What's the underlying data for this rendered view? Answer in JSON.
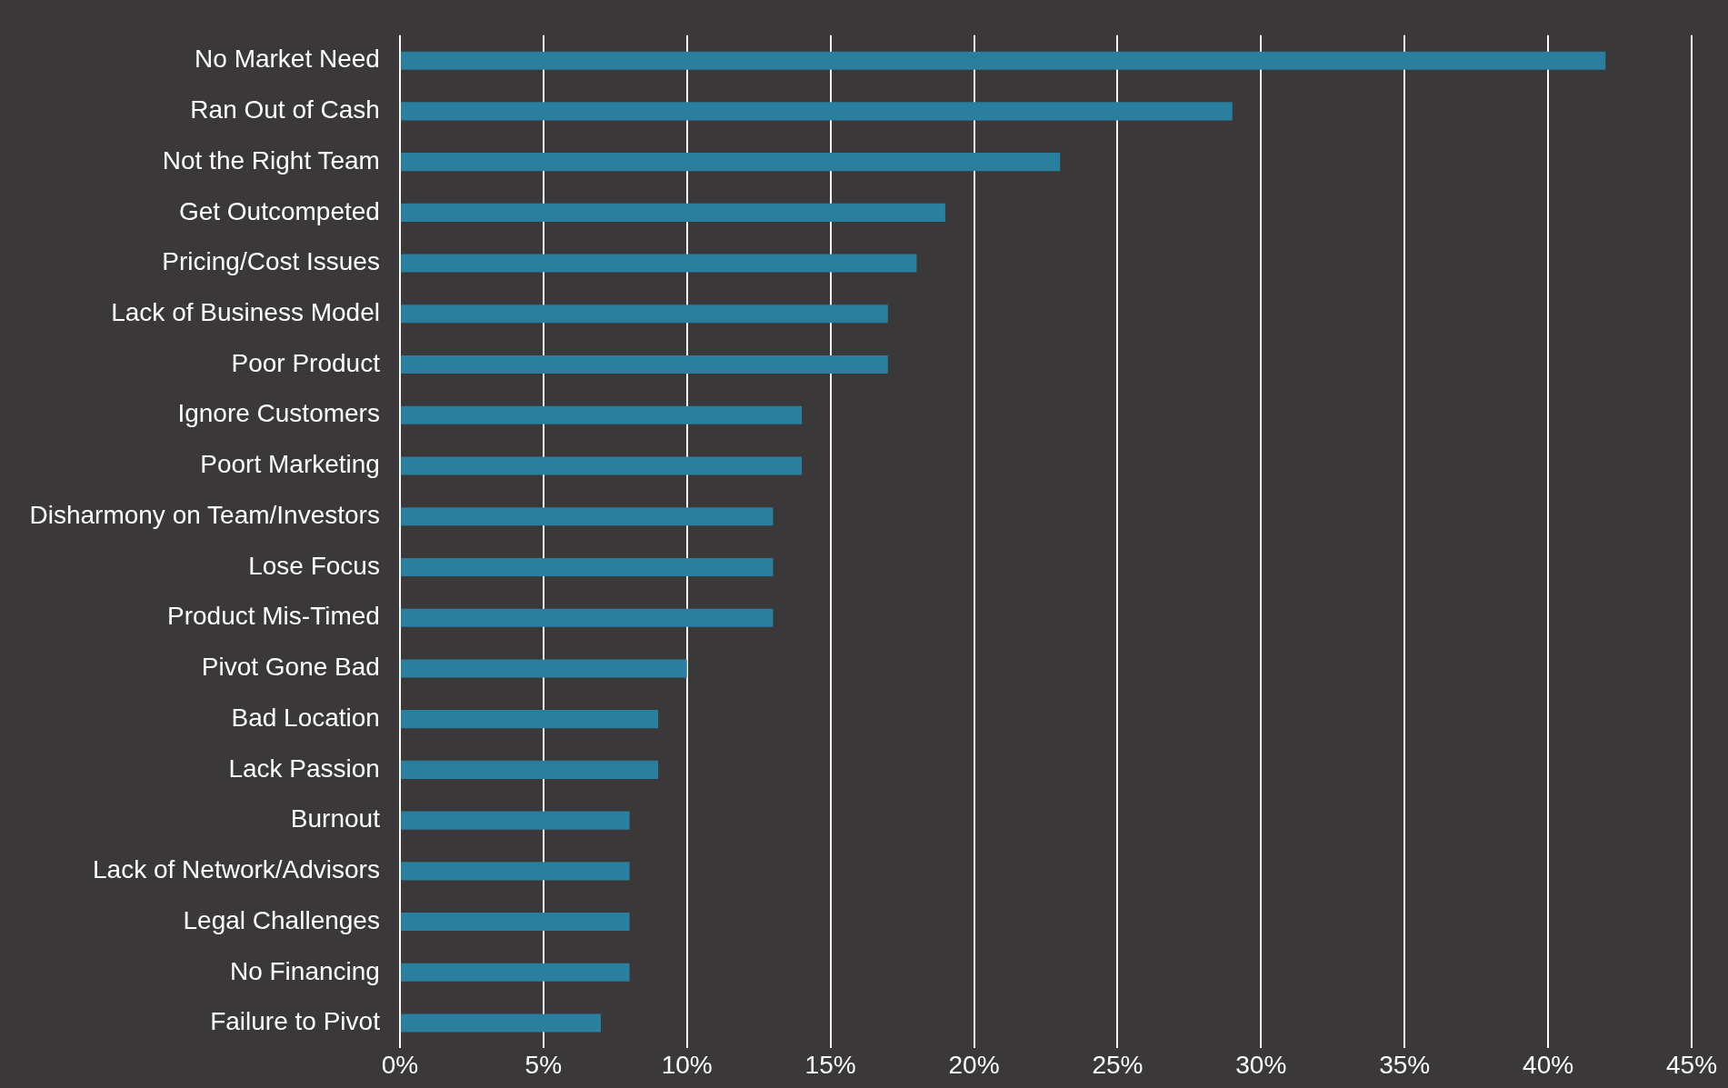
{
  "chart_data": {
    "type": "bar",
    "orientation": "horizontal",
    "categories": [
      "No Market Need",
      "Ran Out of Cash",
      "Not the Right Team",
      "Get Outcompeted",
      "Pricing/Cost Issues",
      "Lack of Business Model",
      "Poor Product",
      "Ignore Customers",
      "Poort Marketing",
      "Disharmony on Team/Investors",
      "Lose Focus",
      "Product Mis-Timed",
      "Pivot Gone Bad",
      "Bad Location",
      "Lack Passion",
      "Burnout",
      "Lack of Network/Advisors",
      "Legal Challenges",
      "No Financing",
      "Failure to Pivot"
    ],
    "values": [
      42,
      29,
      23,
      19,
      18,
      17,
      17,
      14,
      14,
      13,
      13,
      13,
      10,
      9,
      9,
      8,
      8,
      8,
      8,
      7
    ],
    "color": "#2a7f9e",
    "xlim": [
      0,
      45
    ],
    "xticks": [
      {
        "value": 0,
        "label": "0%"
      },
      {
        "value": 5,
        "label": "5%"
      },
      {
        "value": 10,
        "label": "10%"
      },
      {
        "value": 15,
        "label": "15%"
      },
      {
        "value": 20,
        "label": "20%"
      },
      {
        "value": 25,
        "label": "25%"
      },
      {
        "value": 30,
        "label": "30%"
      },
      {
        "value": 35,
        "label": "35%"
      },
      {
        "value": 40,
        "label": "40%"
      },
      {
        "value": 45,
        "label": "45%"
      }
    ],
    "grid": "x",
    "legend": false
  }
}
